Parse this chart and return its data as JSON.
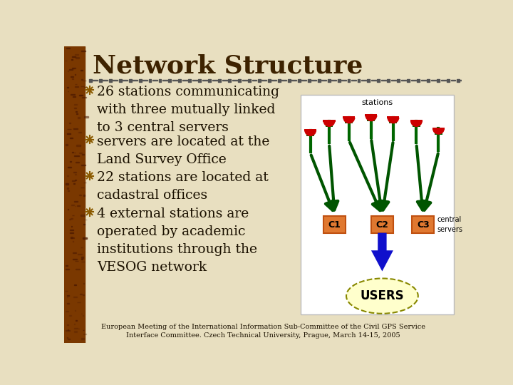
{
  "title": "Network Structure",
  "title_color": "#3d2200",
  "bg_color": "#e8dfc0",
  "left_bar_color": "#7a3800",
  "bullet_color": "#8B5a00",
  "text_color": "#1a1000",
  "bullets": [
    "26 stations communicating\nwith three mutually linked\nto 3 central servers",
    "servers are located at the\nLand Survey Office",
    "22 stations are located at\ncadastral offices",
    "4 external stations are\noperated by academic\ninstitutions through the\nVESOG network"
  ],
  "footer": "European Meeting of the International Information Sub-Committee of the Civil GPS Service\nInterface Committee. Czech Technical University, Prague, March 14-15, 2005",
  "diagram_bg": "#ffffff",
  "server_color": "#e07830",
  "server_border": "#c05010",
  "station_red": "#cc0000",
  "station_green": "#006600",
  "arrow_green": "#005500",
  "arrow_blue": "#1010cc",
  "users_fill": "#ffffcc",
  "users_border": "#888800",
  "divider_color": "#555555"
}
